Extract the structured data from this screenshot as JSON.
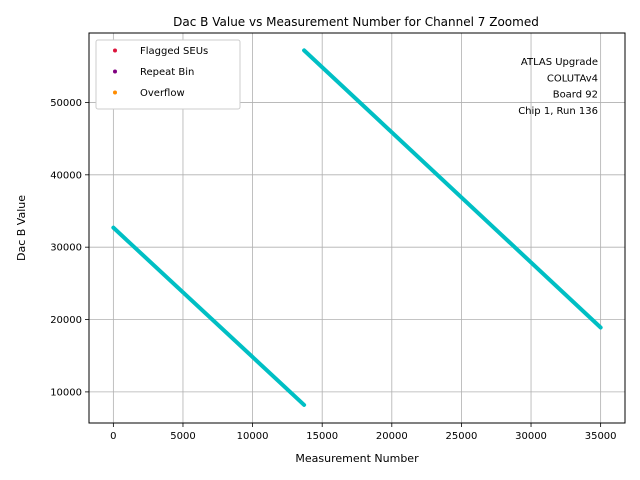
{
  "chart_data": {
    "type": "scatter",
    "title": "Dac B Value vs Measurement Number for Channel 7 Zoomed",
    "xlabel": "Measurement Number",
    "ylabel": "Dac B Value",
    "xlim": [
      -1750,
      36750
    ],
    "ylim": [
      5700,
      59600
    ],
    "xticks": [
      0,
      5000,
      10000,
      15000,
      20000,
      25000,
      30000,
      35000
    ],
    "yticks": [
      10000,
      20000,
      30000,
      40000,
      50000
    ],
    "grid": true,
    "legend_position": "top-left",
    "series": [
      {
        "name": "Flagged SEUs",
        "color": "#dc143c",
        "values": []
      },
      {
        "name": "Repeat Bin",
        "color": "#800080",
        "values": []
      },
      {
        "name": "Overflow",
        "color": "#ff8c00",
        "values": []
      },
      {
        "color": "#00bfc4",
        "segments": [
          {
            "x": [
              0,
              13700
            ],
            "y": [
              32700,
              8200
            ]
          },
          {
            "x": [
              13700,
              35000
            ],
            "y": [
              57200,
              18900
            ]
          }
        ]
      }
    ],
    "annotation": [
      "ATLAS Upgrade",
      "COLUTAv4",
      "Board 92",
      "Chip 1, Run 136"
    ]
  }
}
